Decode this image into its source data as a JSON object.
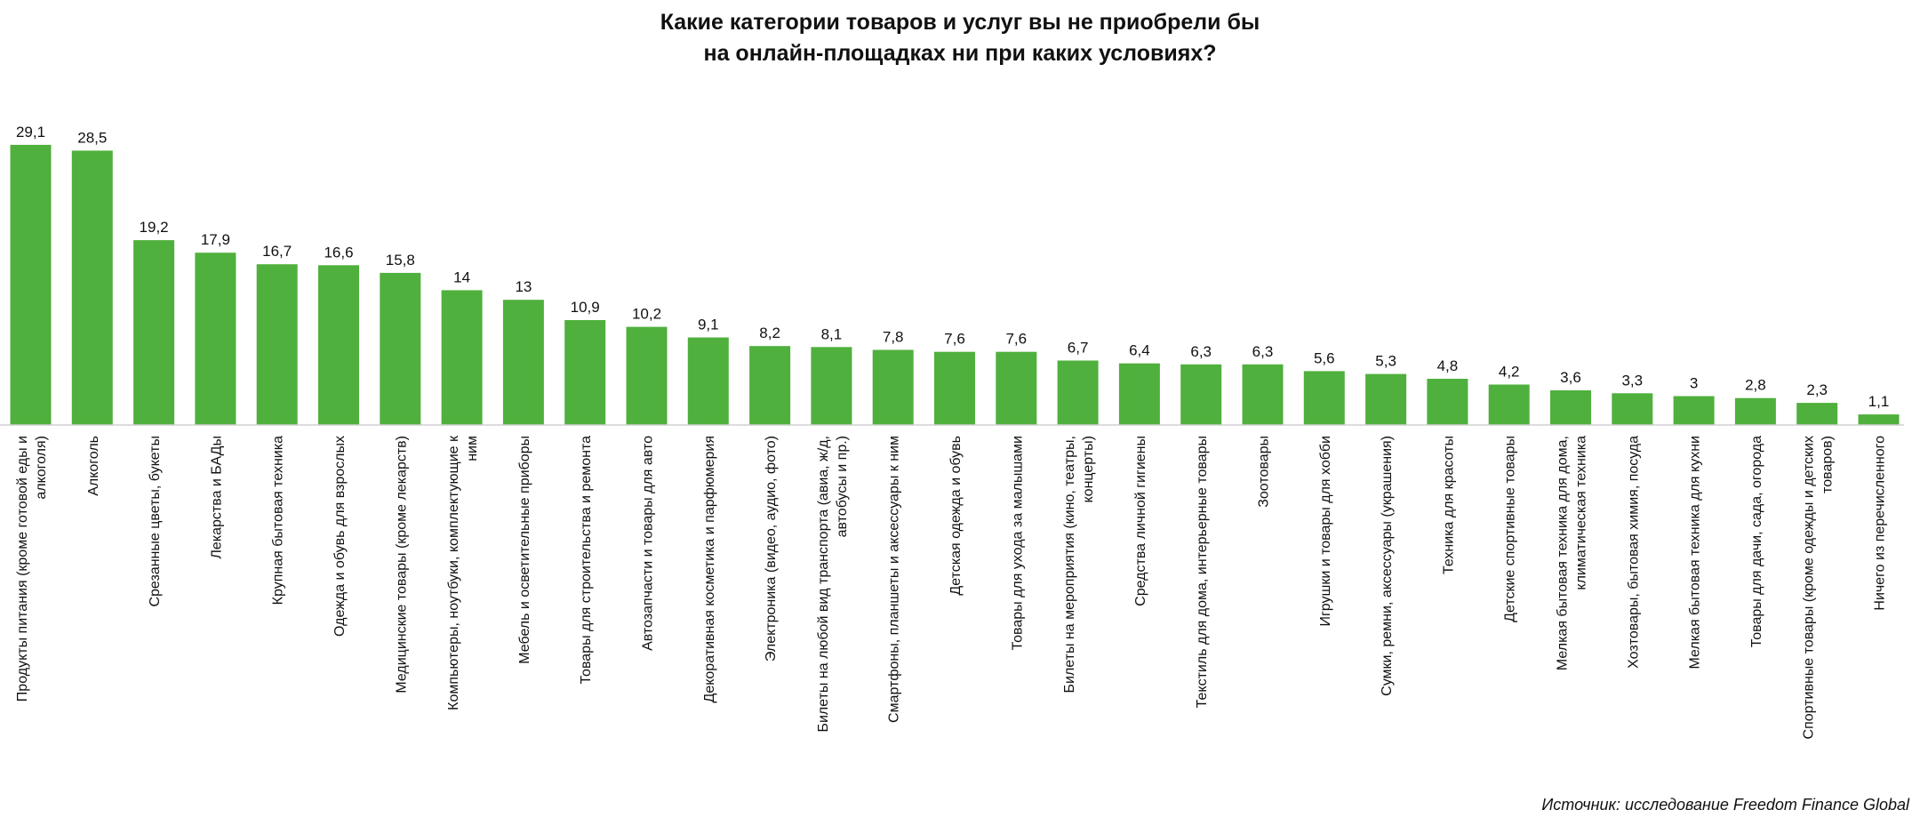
{
  "chart_data": {
    "type": "bar",
    "title": "Какие категории товаров и услуг вы не приобрели бы на онлайн-площадках ни при каких условиях?",
    "title_lines": [
      "Какие категории товаров и услуг вы не приобрели бы",
      "на онлайн-площадках ни при каких условиях?"
    ],
    "xlabel": "",
    "ylabel": "",
    "bar_color": "#50B03D",
    "grid": false,
    "legend": "none",
    "categories": [
      "Продукты питания (кроме готовой еды и алкоголя)",
      "Алкоголь",
      "Срезанные цветы, букеты",
      "Лекарства и БАДы",
      "Крупная бытовая техника",
      "Одежда и обувь для взрослых",
      "Медицинские товары (кроме лекарств)",
      "Компьютеры, ноутбуки, комплектующие к ним",
      "Мебель и осветительные приборы",
      "Товары для строительства и ремонта",
      "Автозапчасти и товары для авто",
      "Декоративная косметика и парфюмерия",
      "Электроника (видео, аудио, фото)",
      "Билеты на любой вид транспорта (авиа, ж/д, автобусы и пр.)",
      "Смартфоны, планшеты и аксессуары к ним",
      "Детская одежда и обувь",
      "Товары для ухода за малышами",
      "Билеты на мероприятия (кино, театры, концерты)",
      "Средства личной гигиены",
      "Текстиль для дома, интерьерные товары",
      "Зоотовары",
      "Игрушки и товары для хобби",
      "Сумки, ремни, аксессуары (украшения)",
      "Техника для красоты",
      "Детские спортивные товары",
      "Мелкая бытовая техника для дома, климатическая техника",
      "Хозтовары, бытовая химия, посуда",
      "Мелкая бытовая техника для кухни",
      "Товары для дачи, сада, огорода",
      "Спортивные товары (кроме одежды и детских товаров)",
      "Ничего из перечисленного"
    ],
    "category_lines": [
      [
        "Продукты питания (кроме готовой еды и",
        "алкоголя)"
      ],
      [
        "Алкоголь"
      ],
      [
        "Срезанные цветы, букеты"
      ],
      [
        "Лекарства и БАДы"
      ],
      [
        "Крупная бытовая техника"
      ],
      [
        "Одежда и обувь для взрослых"
      ],
      [
        "Медицинские товары (кроме лекарств)"
      ],
      [
        "Компьютеры, ноутбуки, комплектующие к",
        "ним"
      ],
      [
        "Мебель и осветительные приборы"
      ],
      [
        "Товары для строительства и ремонта"
      ],
      [
        "Автозапчасти и товары для авто"
      ],
      [
        "Декоративная косметика и парфюмерия"
      ],
      [
        "Электроника (видео, аудио, фото)"
      ],
      [
        "Билеты на любой вид транспорта (авиа, ж/д,",
        "автобусы и пр.)"
      ],
      [
        "Смартфоны, планшеты и аксессуары к ним"
      ],
      [
        "Детская одежда и обувь"
      ],
      [
        "Товары для ухода за малышами"
      ],
      [
        "Билеты на мероприятия (кино, театры,",
        "концерты)"
      ],
      [
        "Средства личной гигиены"
      ],
      [
        "Текстиль для дома, интерьерные товары"
      ],
      [
        "Зоотовары"
      ],
      [
        "Игрушки и товары для хобби"
      ],
      [
        "Сумки, ремни, аксессуары (украшения)"
      ],
      [
        "Техника для красоты"
      ],
      [
        "Детские спортивные товары"
      ],
      [
        "Мелкая бытовая техника для дома,",
        "климатическая техника"
      ],
      [
        "Хозтовары, бытовая химия, посуда"
      ],
      [
        "Мелкая бытовая техника для кухни"
      ],
      [
        "Товары для дачи, сада, огорода"
      ],
      [
        "Спортивные товары (кроме одежды и детских",
        "товаров)"
      ],
      [
        "Ничего из перечисленного"
      ]
    ],
    "values": [
      29.1,
      28.5,
      19.2,
      17.9,
      16.7,
      16.6,
      15.8,
      14,
      13,
      10.9,
      10.2,
      9.1,
      8.2,
      8.1,
      7.8,
      7.6,
      7.6,
      6.7,
      6.4,
      6.3,
      6.3,
      5.6,
      5.3,
      4.8,
      4.2,
      3.6,
      3.3,
      3,
      2.8,
      2.3,
      1.1
    ],
    "value_labels": [
      "29,1",
      "28,5",
      "19,2",
      "17,9",
      "16,7",
      "16,6",
      "15,8",
      "14",
      "13",
      "10,9",
      "10,2",
      "9,1",
      "8,2",
      "8,1",
      "7,8",
      "7,6",
      "7,6",
      "6,7",
      "6,4",
      "6,3",
      "6,3",
      "5,6",
      "5,3",
      "4,8",
      "4,2",
      "3,6",
      "3,3",
      "3",
      "2,8",
      "2,3",
      "1,1"
    ],
    "ylim": [
      0,
      30
    ]
  },
  "footer": {
    "source": "Источник: исследование Freedom Finance Global"
  }
}
